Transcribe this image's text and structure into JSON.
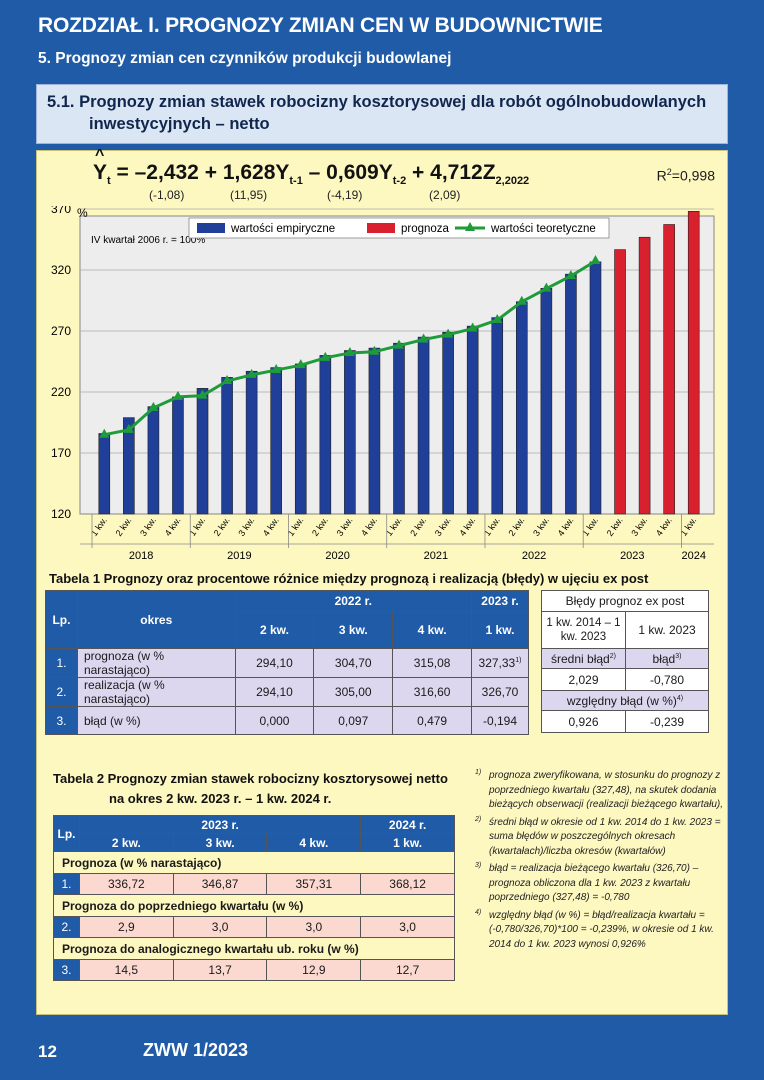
{
  "header": {
    "chapter": "ROZDZIAŁ I.  PROGNOZY ZMIAN CEN W BUDOWNICTWIE",
    "subchapter": "5.   Prognozy zmian cen czynników produkcji budowlanej",
    "section_line1": "5.1. Prognozy zmian stawek robocizny kosztorysowej dla robót ogólnobudowlanych",
    "section_line2": "inwestycyjnych – netto"
  },
  "equation": {
    "lhs": "Y",
    "lhs_sub": "t",
    "t1": "= –2,432",
    "t2": "+ 1,628Y",
    "t2_sub": "t-1",
    "t3": "– 0,609Y",
    "t3_sub": "t-2",
    "t4": "+ 4,712Z",
    "t4_sub": "2,2022",
    "se1": "(-1,08)",
    "se2": "(11,95)",
    "se3": "(-4,19)",
    "se4": "(2,09)",
    "r2_label": "R",
    "r2_sup": "2",
    "r2_value": "=0,998"
  },
  "chart_data": {
    "type": "bar",
    "ylabel": "%",
    "note": "IV kwartał 2006 r. = 100%",
    "ylim": [
      120,
      370
    ],
    "yticks": [
      120,
      170,
      220,
      270,
      320,
      370
    ],
    "legend": [
      "wartości empiryczne",
      "prognoza",
      "wartości teoretyczne"
    ],
    "legend_position": "top",
    "grid": true,
    "categories": [
      "1 kw.",
      "2 kw.",
      "3 kw.",
      "4 kw.",
      "1 kw.",
      "2 kw.",
      "3 kw.",
      "4 kw.",
      "1 kw.",
      "2 kw.",
      "3 kw.",
      "4 kw.",
      "1 kw.",
      "2 kw.",
      "3 kw.",
      "4 kw.",
      "1 kw.",
      "2 kw.",
      "3 kw.",
      "4 kw.",
      "1 kw.",
      "2 kw.",
      "3 kw.",
      "4 kw.",
      "1 kw."
    ],
    "years": [
      {
        "label": "2018",
        "start": 0,
        "count": 4
      },
      {
        "label": "2019",
        "start": 4,
        "count": 4
      },
      {
        "label": "2020",
        "start": 8,
        "count": 4
      },
      {
        "label": "2021",
        "start": 12,
        "count": 4
      },
      {
        "label": "2022",
        "start": 16,
        "count": 4
      },
      {
        "label": "2023",
        "start": 20,
        "count": 4
      },
      {
        "label": "2024",
        "start": 24,
        "count": 1
      }
    ],
    "series": [
      {
        "name": "wartości empiryczne",
        "type": "bar",
        "color": "#1f3f99",
        "values": [
          186,
          199,
          208,
          216,
          223,
          232,
          237,
          240,
          243,
          250,
          254,
          256,
          260,
          265,
          269,
          274,
          281,
          294,
          305,
          316.6,
          326.7,
          null,
          null,
          null,
          null
        ]
      },
      {
        "name": "prognoza",
        "type": "bar",
        "color": "#d9202e",
        "values": [
          null,
          null,
          null,
          null,
          null,
          null,
          null,
          null,
          null,
          null,
          null,
          null,
          null,
          null,
          null,
          null,
          null,
          null,
          null,
          null,
          null,
          336.72,
          346.87,
          357.31,
          368.12
        ]
      },
      {
        "name": "wartości teoretyczne",
        "type": "line",
        "color": "#1e9c3a",
        "values": [
          185,
          189,
          207,
          216,
          217,
          229,
          234,
          238,
          242,
          248,
          252,
          253,
          258,
          263,
          267,
          272,
          279,
          294,
          304.7,
          315.08,
          327.33,
          null,
          null,
          null,
          null
        ]
      }
    ]
  },
  "table1": {
    "title": "Tabela 1  Prognozy oraz procentowe różnice między prognozą i realizacją (błędy) w ujęciu ex post",
    "lp": "Lp.",
    "okres": "okres",
    "year_a": "2022 r.",
    "year_b": "2023 r.",
    "cols": [
      "2 kw.",
      "3 kw.",
      "4 kw.",
      "1 kw."
    ],
    "rows": [
      {
        "lp": "1.",
        "label": "prognoza (w % narastająco)",
        "values": [
          "294,10",
          "304,70",
          "315,08",
          "327,33"
        ],
        "last_sup": "1)"
      },
      {
        "lp": "2.",
        "label": "realizacja (w % narastająco)",
        "values": [
          "294,10",
          "305,00",
          "316,60",
          "326,70"
        ],
        "last_sup": ""
      },
      {
        "lp": "3.",
        "label": "błąd (w %)",
        "values": [
          "0,000",
          "0,097",
          "0,479",
          "-0,194"
        ],
        "last_sup": ""
      }
    ]
  },
  "errors": {
    "title": "Błędy prognoz ex post",
    "col_a": "1 kw. 2014 – 1 kw. 2023",
    "col_b": "1 kw. 2023",
    "mean_label": "średni błąd",
    "mean_sup": "2)",
    "err_label": "błąd",
    "err_sup": "3)",
    "mean_value": "2,029",
    "err_value": "-0,780",
    "rel_label": "względny błąd (w %)",
    "rel_sup": "4)",
    "rel_a": "0,926",
    "rel_b": "-0,239"
  },
  "table2": {
    "title_line1": "Tabela 2  Prognozy zmian stawek robocizny kosztorysowej netto",
    "title_line2": "na okres 2 kw. 2023 r. – 1 kw. 2024 r.",
    "lp": "Lp.",
    "year_a": "2023 r.",
    "year_b": "2024 r.",
    "cols": [
      "2 kw.",
      "3 kw.",
      "4 kw.",
      "1 kw."
    ],
    "sections": [
      {
        "heading": "Prognoza (w % narastająco)",
        "lp": "1.",
        "values": [
          "336,72",
          "346,87",
          "357,31",
          "368,12"
        ]
      },
      {
        "heading": "Prognoza do poprzedniego kwartału (w %)",
        "lp": "2.",
        "values": [
          "2,9",
          "3,0",
          "3,0",
          "3,0"
        ]
      },
      {
        "heading": "Prognoza do analogicznego kwartału ub. roku (w %)",
        "lp": "3.",
        "values": [
          "14,5",
          "13,7",
          "12,9",
          "12,7"
        ]
      }
    ]
  },
  "notes": [
    {
      "mark": "1)",
      "text": "prognoza zweryfikowana, w stosunku do prognozy z poprzedniego kwartału (327,48), na skutek dodania bieżących obserwacji (realizacji bieżącego kwartału),"
    },
    {
      "mark": "2)",
      "text": "średni błąd w okresie od 1 kw. 2014 do 1 kw. 2023 = suma błędów w poszczególnych okresach (kwartałach)/liczba okresów (kwartałów)"
    },
    {
      "mark": "3)",
      "text": "błąd = realizacja bieżącego kwartału (326,70) – prognoza obliczona dla 1 kw. 2023 z kwartału poprzedniego (327,48) = -0,780"
    },
    {
      "mark": "4)",
      "text": "względny błąd (w %) = błąd/realizacja kwartału = (-0,780/326,70)*100 = -0,239%, w okresie od 1 kw. 2014 do 1 kw. 2023 wynosi 0,926%"
    }
  ],
  "footer": {
    "page": "12",
    "issue": "ZWW 1/2023"
  }
}
